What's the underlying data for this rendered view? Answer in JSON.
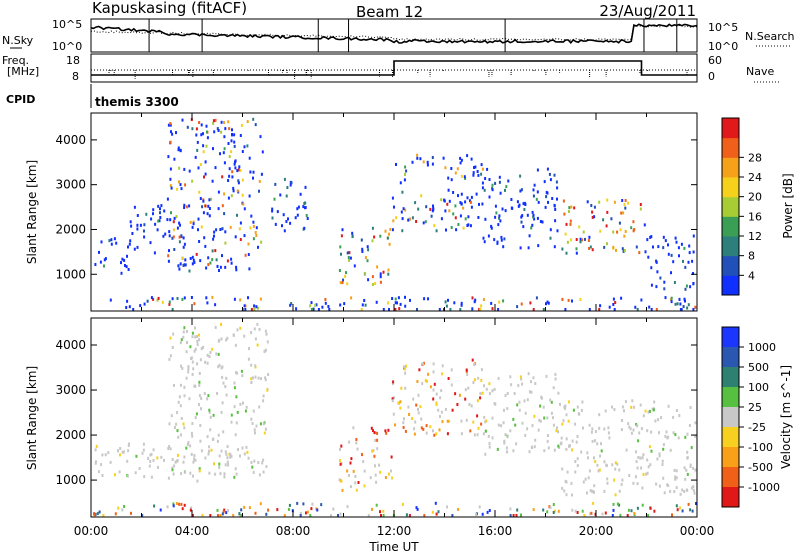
{
  "chart_data": {
    "type": "heatmap",
    "header": {
      "station": "Kapuskasing (fitACF)",
      "beam": "Beam 12",
      "date": "23/Aug/2011"
    },
    "time_axis": {
      "label": "Time UT",
      "range_hours": [
        0,
        24
      ],
      "ticks": [
        "00:00",
        "04:00",
        "08:00",
        "12:00",
        "16:00",
        "20:00",
        "00:00"
      ]
    },
    "status_panels": [
      {
        "left_label": "N.Sky",
        "right_label": "N.Search",
        "left_ticks": [
          "10^5",
          "10^0"
        ],
        "right_ticks": [
          "10^5",
          "10^0"
        ]
      },
      {
        "left_label_lines": [
          "Freq.",
          "[MHz]"
        ],
        "right_label": "Nave",
        "left_ticks": [
          "18",
          "8"
        ],
        "right_ticks": [
          "60",
          "0"
        ],
        "freq_steps": [
          {
            "from_hour": 0,
            "to_hour": 12,
            "freq_mhz": 10.5
          },
          {
            "from_hour": 12,
            "to_hour": 21.8,
            "freq_mhz": 15.5
          },
          {
            "from_hour": 21.8,
            "to_hour": 24,
            "freq_mhz": 10.5
          }
        ]
      },
      {
        "left_label": "CPID",
        "program": "themis 3300"
      }
    ],
    "panels": [
      {
        "name": "power",
        "ylabel": "Slant Range [km]",
        "ylim": [
          180,
          4600
        ],
        "yticks": [
          1000,
          2000,
          3000,
          4000
        ],
        "colorbar": {
          "label": "Power [dB]",
          "ticks": [
            "4",
            "8",
            "12",
            "16",
            "20",
            "24",
            "28"
          ],
          "colors": [
            "#1030ff",
            "#2050b8",
            "#2d7f7c",
            "#3a9f55",
            "#a8cc34",
            "#f5d11c",
            "#f5a21a",
            "#f0601a",
            "#e01a1a"
          ]
        },
        "echo_regions": [
          {
            "t0": 0.1,
            "t1": 1.7,
            "r0": 1050,
            "r1": 1850,
            "level": "low"
          },
          {
            "t0": 1.5,
            "t1": 3.8,
            "r0": 1500,
            "r1": 2600,
            "level": "low"
          },
          {
            "t0": 3.0,
            "t1": 6.8,
            "r0": 1100,
            "r1": 4500,
            "level": "mixed"
          },
          {
            "t0": 7.0,
            "t1": 8.6,
            "r0": 2000,
            "r1": 3200,
            "level": "low"
          },
          {
            "t0": 9.8,
            "t1": 11.9,
            "r0": 800,
            "r1": 2100,
            "level": "high"
          },
          {
            "t0": 11.9,
            "t1": 15.5,
            "r0": 2000,
            "r1": 3700,
            "level": "mixed"
          },
          {
            "t0": 15.5,
            "t1": 18.5,
            "r0": 1600,
            "r1": 3400,
            "level": "low"
          },
          {
            "t0": 18.6,
            "t1": 21.9,
            "r0": 1500,
            "r1": 2700,
            "level": "high"
          },
          {
            "t0": 21.9,
            "t1": 23.9,
            "r0": 650,
            "r1": 1900,
            "level": "low"
          },
          {
            "t0": 0.0,
            "t1": 24.0,
            "r0": 180,
            "r1": 520,
            "level": "mixed"
          }
        ]
      },
      {
        "name": "velocity",
        "ylabel": "Slant Range [km]",
        "ylim": [
          180,
          4600
        ],
        "yticks": [
          1000,
          2000,
          3000,
          4000
        ],
        "colorbar": {
          "label": "Velocity [m s^-1]",
          "ticks": [
            "1000",
            "500",
            "100",
            "25",
            "-25",
            "-100",
            "-500",
            "-1000"
          ],
          "colors": [
            "#1a36ff",
            "#2a58b0",
            "#2e8070",
            "#58c040",
            "#c8c8c8",
            "#f8d020",
            "#f8a018",
            "#f06018",
            "#e01818"
          ]
        },
        "echo_regions": [
          {
            "t0": 0.1,
            "t1": 3.5,
            "r0": 1050,
            "r1": 1850,
            "level": "near-zero"
          },
          {
            "t0": 3.0,
            "t1": 7.0,
            "r0": 1000,
            "r1": 4500,
            "level": "near-zero"
          },
          {
            "t0": 9.8,
            "t1": 11.9,
            "r0": 800,
            "r1": 2200,
            "level": "negative"
          },
          {
            "t0": 11.9,
            "t1": 15.5,
            "r0": 2000,
            "r1": 3700,
            "level": "negative"
          },
          {
            "t0": 15.5,
            "t1": 18.8,
            "r0": 1600,
            "r1": 3400,
            "level": "near-zero"
          },
          {
            "t0": 18.6,
            "t1": 23.9,
            "r0": 700,
            "r1": 2800,
            "level": "near-zero"
          },
          {
            "t0": 0.0,
            "t1": 24.0,
            "r0": 180,
            "r1": 520,
            "level": "mixed"
          }
        ]
      }
    ]
  }
}
